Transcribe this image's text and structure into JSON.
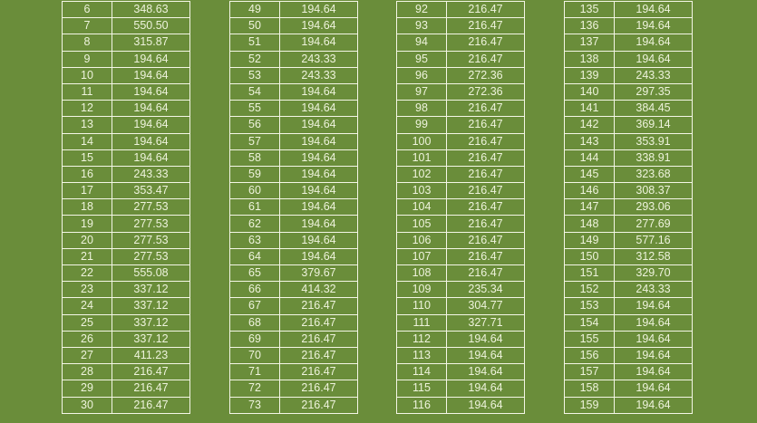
{
  "colors": {
    "background": "#6a8d3a",
    "text": "#eef3dc",
    "grid": "#f4f6e6"
  },
  "tables": [
    {
      "rows": [
        [
          "6",
          "348.63"
        ],
        [
          "7",
          "550.50"
        ],
        [
          "8",
          "315.87"
        ],
        [
          "9",
          "194.64"
        ],
        [
          "10",
          "194.64"
        ],
        [
          "11",
          "194.64"
        ],
        [
          "12",
          "194.64"
        ],
        [
          "13",
          "194.64"
        ],
        [
          "14",
          "194.64"
        ],
        [
          "15",
          "194.64"
        ],
        [
          "16",
          "243.33"
        ],
        [
          "17",
          "353.47"
        ],
        [
          "18",
          "277.53"
        ],
        [
          "19",
          "277.53"
        ],
        [
          "20",
          "277.53"
        ],
        [
          "21",
          "277.53"
        ],
        [
          "22",
          "555.08"
        ],
        [
          "23",
          "337.12"
        ],
        [
          "24",
          "337.12"
        ],
        [
          "25",
          "337.12"
        ],
        [
          "26",
          "337.12"
        ],
        [
          "27",
          "411.23"
        ],
        [
          "28",
          "216.47"
        ],
        [
          "29",
          "216.47"
        ],
        [
          "30",
          "216.47"
        ]
      ]
    },
    {
      "rows": [
        [
          "49",
          "194.64"
        ],
        [
          "50",
          "194.64"
        ],
        [
          "51",
          "194.64"
        ],
        [
          "52",
          "243.33"
        ],
        [
          "53",
          "243.33"
        ],
        [
          "54",
          "194.64"
        ],
        [
          "55",
          "194.64"
        ],
        [
          "56",
          "194.64"
        ],
        [
          "57",
          "194.64"
        ],
        [
          "58",
          "194.64"
        ],
        [
          "59",
          "194.64"
        ],
        [
          "60",
          "194.64"
        ],
        [
          "61",
          "194.64"
        ],
        [
          "62",
          "194.64"
        ],
        [
          "63",
          "194.64"
        ],
        [
          "64",
          "194.64"
        ],
        [
          "65",
          "379.67"
        ],
        [
          "66",
          "414.32"
        ],
        [
          "67",
          "216.47"
        ],
        [
          "68",
          "216.47"
        ],
        [
          "69",
          "216.47"
        ],
        [
          "70",
          "216.47"
        ],
        [
          "71",
          "216.47"
        ],
        [
          "72",
          "216.47"
        ],
        [
          "73",
          "216.47"
        ]
      ]
    },
    {
      "rows": [
        [
          "92",
          "216.47"
        ],
        [
          "93",
          "216.47"
        ],
        [
          "94",
          "216.47"
        ],
        [
          "95",
          "216.47"
        ],
        [
          "96",
          "272.36"
        ],
        [
          "97",
          "272.36"
        ],
        [
          "98",
          "216.47"
        ],
        [
          "99",
          "216.47"
        ],
        [
          "100",
          "216.47"
        ],
        [
          "101",
          "216.47"
        ],
        [
          "102",
          "216.47"
        ],
        [
          "103",
          "216.47"
        ],
        [
          "104",
          "216.47"
        ],
        [
          "105",
          "216.47"
        ],
        [
          "106",
          "216.47"
        ],
        [
          "107",
          "216.47"
        ],
        [
          "108",
          "216.47"
        ],
        [
          "109",
          "235.34"
        ],
        [
          "110",
          "304.77"
        ],
        [
          "111",
          "327.71"
        ],
        [
          "112",
          "194.64"
        ],
        [
          "113",
          "194.64"
        ],
        [
          "114",
          "194.64"
        ],
        [
          "115",
          "194.64"
        ],
        [
          "116",
          "194.64"
        ]
      ]
    },
    {
      "rows": [
        [
          "135",
          "194.64"
        ],
        [
          "136",
          "194.64"
        ],
        [
          "137",
          "194.64"
        ],
        [
          "138",
          "194.64"
        ],
        [
          "139",
          "243.33"
        ],
        [
          "140",
          "297.35"
        ],
        [
          "141",
          "384.45"
        ],
        [
          "142",
          "369.14"
        ],
        [
          "143",
          "353.91"
        ],
        [
          "144",
          "338.91"
        ],
        [
          "145",
          "323.68"
        ],
        [
          "146",
          "308.37"
        ],
        [
          "147",
          "293.06"
        ],
        [
          "148",
          "277.69"
        ],
        [
          "149",
          "577.16"
        ],
        [
          "150",
          "312.58"
        ],
        [
          "151",
          "329.70"
        ],
        [
          "152",
          "243.33"
        ],
        [
          "153",
          "194.64"
        ],
        [
          "154",
          "194.64"
        ],
        [
          "155",
          "194.64"
        ],
        [
          "156",
          "194.64"
        ],
        [
          "157",
          "194.64"
        ],
        [
          "158",
          "194.64"
        ],
        [
          "159",
          "194.64"
        ]
      ]
    }
  ]
}
